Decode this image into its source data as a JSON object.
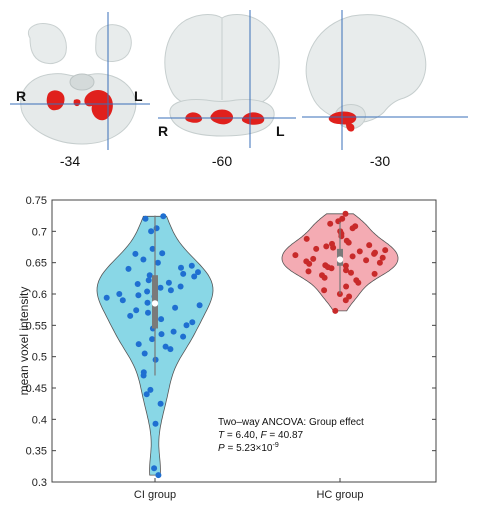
{
  "brain_panels": [
    {
      "view": "axial",
      "slice": "-34",
      "left_label": "R",
      "right_label": "L"
    },
    {
      "view": "coronal",
      "slice": "-60",
      "left_label": "R",
      "right_label": "L"
    },
    {
      "view": "sagittal",
      "slice": "-30"
    }
  ],
  "chart_data": {
    "type": "violin",
    "ylabel": "mean voxel intensity",
    "ylim": [
      0.3,
      0.75
    ],
    "yticks": [
      "0.3",
      "0.35",
      "0.4",
      "0.45",
      "0.5",
      "0.55",
      "0.6",
      "0.65",
      "0.7",
      "0.75"
    ],
    "categories": [
      "CI group",
      "HC group"
    ],
    "series": [
      {
        "name": "CI group",
        "color": "#5bc8dc",
        "point_color": "#1f6fd1",
        "median": 0.585,
        "q1": 0.545,
        "q3": 0.63,
        "whisker": [
          0.47,
          0.725
        ],
        "values": [
          0.724,
          0.72,
          0.705,
          0.7,
          0.672,
          0.665,
          0.664,
          0.655,
          0.65,
          0.645,
          0.642,
          0.64,
          0.635,
          0.632,
          0.63,
          0.628,
          0.622,
          0.618,
          0.616,
          0.612,
          0.61,
          0.606,
          0.604,
          0.6,
          0.598,
          0.596,
          0.594,
          0.59,
          0.586,
          0.582,
          0.578,
          0.574,
          0.57,
          0.565,
          0.56,
          0.555,
          0.55,
          0.545,
          0.54,
          0.536,
          0.532,
          0.528,
          0.52,
          0.516,
          0.512,
          0.505,
          0.495,
          0.475,
          0.47,
          0.447,
          0.44,
          0.425,
          0.393,
          0.322,
          0.311
        ]
      },
      {
        "name": "HC group",
        "color": "#f08a96",
        "point_color": "#c82a2a",
        "median": 0.655,
        "q1": 0.645,
        "q3": 0.672,
        "whisker": [
          0.6,
          0.715
        ],
        "values": [
          0.728,
          0.72,
          0.716,
          0.712,
          0.708,
          0.705,
          0.7,
          0.696,
          0.692,
          0.688,
          0.685,
          0.682,
          0.68,
          0.678,
          0.676,
          0.674,
          0.672,
          0.67,
          0.668,
          0.666,
          0.664,
          0.662,
          0.66,
          0.658,
          0.656,
          0.654,
          0.652,
          0.65,
          0.648,
          0.646,
          0.645,
          0.643,
          0.641,
          0.638,
          0.636,
          0.634,
          0.632,
          0.63,
          0.626,
          0.622,
          0.618,
          0.612,
          0.606,
          0.6,
          0.596,
          0.59,
          0.573
        ]
      }
    ],
    "annotation": {
      "line1": "Two–way ANCOVA: Group effect",
      "line2_t": "T",
      "line2_mid": " = 6.40, ",
      "line2_f": "F",
      "line2_end": " = 40.87",
      "line3_p": "P",
      "line3_mid": " = 5.23×10",
      "line3_exp": "-9"
    }
  }
}
